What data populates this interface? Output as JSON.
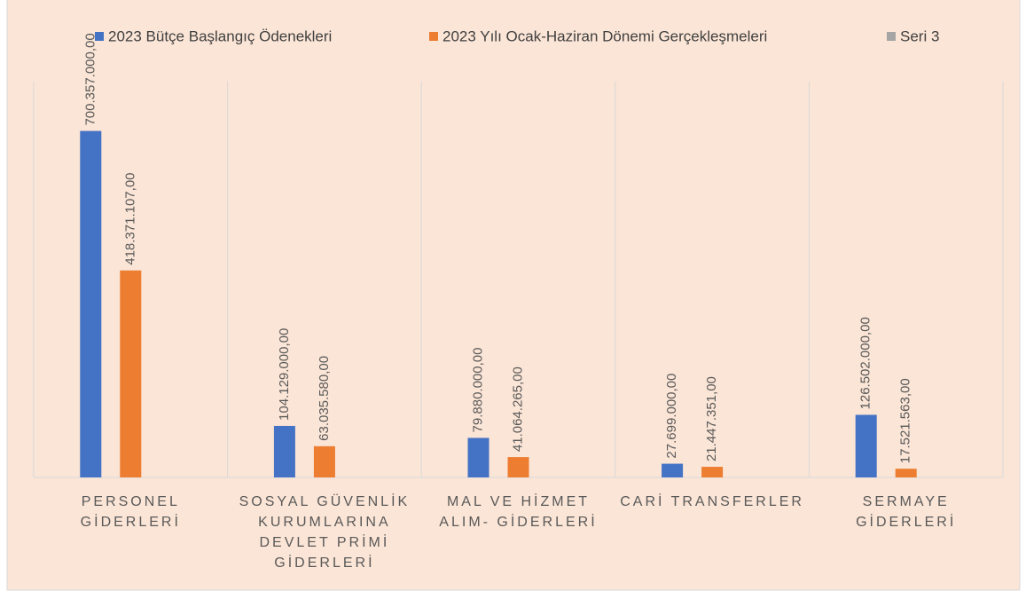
{
  "chart_data": {
    "type": "bar",
    "categories": [
      "PERSONEL GİDERLERİ",
      "SOSYAL GÜVENLİK KURUMLARINA DEVLET PRİMİ GİDERLERİ",
      "MAL VE HİZMET ALIM- GİDERLERİ",
      "CARİ TRANSFERLER",
      "SERMAYE GİDERLERİ"
    ],
    "series": [
      {
        "name": "2023 Bütçe Başlangıç Ödenekleri",
        "color": "#4472c4",
        "values": [
          700357000,
          104129000,
          79880000,
          27699000,
          126502000
        ],
        "value_labels": [
          "700.357.000,00",
          "104.129.000,00",
          "79.880.000,00",
          "27.699.000,00",
          "126.502.000,00"
        ]
      },
      {
        "name": "2023 Yılı Ocak-Haziran Dönemi Gerçekleşmeleri",
        "color": "#ed7d31",
        "values": [
          418371107,
          63035580,
          41064265,
          21447351,
          17521563
        ],
        "value_labels": [
          "418.371.107,00",
          "63.035.580,00",
          "41.064.265,00",
          "21.447.351,00",
          "17.521.563,00"
        ]
      },
      {
        "name": "Seri 3",
        "color": "#a5a5a5",
        "values": [
          null,
          null,
          null,
          null,
          null
        ],
        "value_labels": [
          null,
          null,
          null,
          null,
          null
        ]
      }
    ],
    "ylim": [
      0,
      800000000
    ],
    "legend": "top"
  }
}
